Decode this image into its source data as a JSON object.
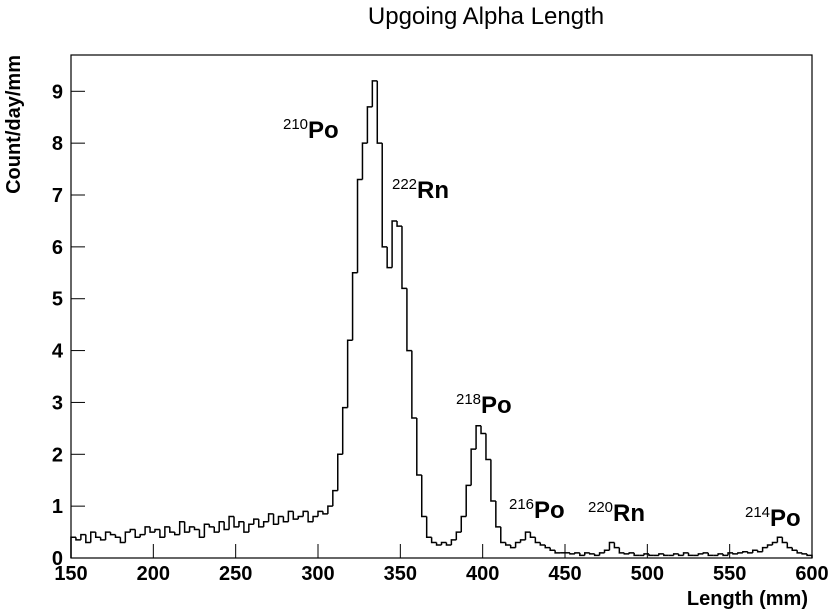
{
  "chart_data": {
    "type": "histogram",
    "title": "Upgoing Alpha Length",
    "x_label": "Length (mm)",
    "y_label": "Count/day/mm",
    "color": "#000000",
    "bins": [
      150,
      153,
      156,
      159,
      162,
      165,
      168,
      171,
      174,
      177,
      180,
      183,
      186,
      189,
      192,
      195,
      198,
      201,
      204,
      207,
      210,
      213,
      216,
      219,
      222,
      225,
      228,
      231,
      234,
      237,
      240,
      243,
      246,
      249,
      252,
      255,
      258,
      261,
      264,
      267,
      270,
      273,
      276,
      279,
      282,
      285,
      288,
      291,
      294,
      297,
      300,
      303,
      306,
      309,
      312,
      315,
      318,
      321,
      324,
      327,
      330,
      333,
      336,
      339,
      342,
      345,
      348,
      351,
      354,
      357,
      360,
      363,
      366,
      369,
      372,
      375,
      378,
      381,
      384,
      387,
      390,
      393,
      396,
      399,
      402,
      405,
      408,
      411,
      414,
      417,
      420,
      423,
      426,
      429,
      432,
      435,
      438,
      441,
      444,
      447,
      450,
      453,
      456,
      459,
      462,
      465,
      468,
      471,
      474,
      477,
      480,
      483,
      486,
      489,
      492,
      495,
      498,
      501,
      504,
      507,
      510,
      513,
      516,
      519,
      522,
      525,
      528,
      531,
      534,
      537,
      540,
      543,
      546,
      549,
      552,
      555,
      558,
      561,
      564,
      567,
      570,
      573,
      576,
      579,
      582,
      585,
      588,
      591,
      594,
      597,
      600
    ],
    "values": [
      0.4,
      0.35,
      0.45,
      0.3,
      0.5,
      0.4,
      0.35,
      0.5,
      0.45,
      0.4,
      0.3,
      0.5,
      0.55,
      0.4,
      0.45,
      0.6,
      0.5,
      0.55,
      0.4,
      0.6,
      0.5,
      0.45,
      0.7,
      0.5,
      0.6,
      0.55,
      0.4,
      0.65,
      0.6,
      0.5,
      0.7,
      0.55,
      0.8,
      0.6,
      0.7,
      0.5,
      0.65,
      0.75,
      0.6,
      0.7,
      0.85,
      0.65,
      0.8,
      0.7,
      0.9,
      0.75,
      0.8,
      0.9,
      0.7,
      0.8,
      0.9,
      0.85,
      1.0,
      1.3,
      2.0,
      2.9,
      4.2,
      5.5,
      7.3,
      8.0,
      8.7,
      9.2,
      8.0,
      6.0,
      5.6,
      6.5,
      6.4,
      5.2,
      4.0,
      2.7,
      1.6,
      0.8,
      0.4,
      0.3,
      0.25,
      0.3,
      0.25,
      0.35,
      0.5,
      0.8,
      1.4,
      2.1,
      2.55,
      2.4,
      1.9,
      1.1,
      0.6,
      0.3,
      0.25,
      0.2,
      0.3,
      0.35,
      0.5,
      0.4,
      0.3,
      0.25,
      0.2,
      0.15,
      0.1,
      0.1,
      0.1,
      0.08,
      0.1,
      0.05,
      0.1,
      0.08,
      0.05,
      0.1,
      0.15,
      0.3,
      0.2,
      0.1,
      0.08,
      0.1,
      0.05,
      0.05,
      0.08,
      0.05,
      0.05,
      0.08,
      0.05,
      0.05,
      0.08,
      0.05,
      0.1,
      0.05,
      0.05,
      0.08,
      0.1,
      0.05,
      0.05,
      0.08,
      0.05,
      0.1,
      0.08,
      0.1,
      0.12,
      0.1,
      0.15,
      0.12,
      0.2,
      0.25,
      0.3,
      0.4,
      0.3,
      0.2,
      0.15,
      0.1,
      0.08,
      0.05
    ],
    "xlim": [
      150,
      600
    ],
    "ylim": [
      0,
      9.7
    ],
    "xticks": [
      150,
      200,
      250,
      300,
      350,
      400,
      450,
      500,
      550,
      600
    ],
    "yticks": [
      0,
      1,
      2,
      3,
      4,
      5,
      6,
      7,
      8,
      9
    ],
    "annotations": [
      {
        "mass": "210",
        "element": "Po"
      },
      {
        "mass": "222",
        "element": "Rn"
      },
      {
        "mass": "218",
        "element": "Po"
      },
      {
        "mass": "216",
        "element": "Po"
      },
      {
        "mass": "220",
        "element": "Rn"
      },
      {
        "mass": "214",
        "element": "Po"
      }
    ]
  }
}
